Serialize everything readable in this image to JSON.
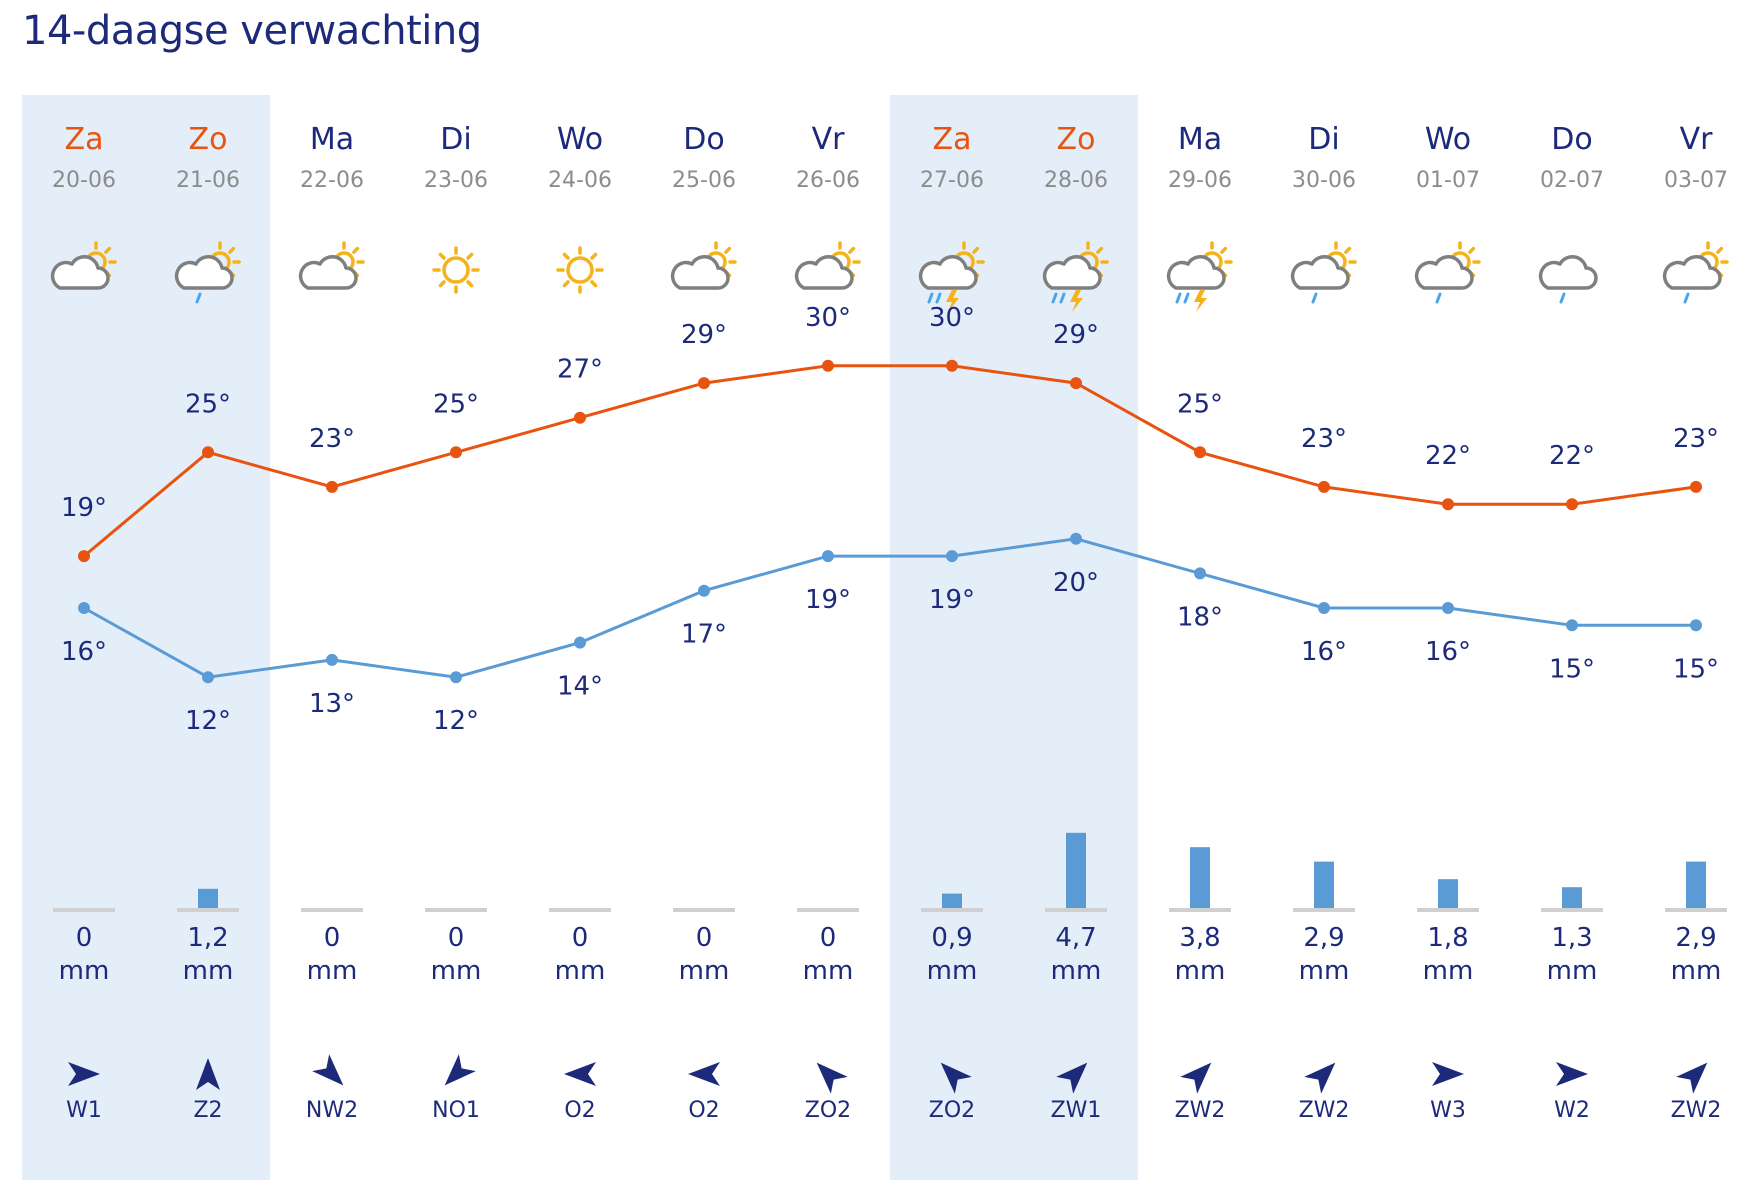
{
  "title": "14-daagse verwachting",
  "colors": {
    "text": "#1d2a7a",
    "weekend_text": "#e8540f",
    "date_text": "#8c8c8c",
    "max_line": "#e8540f",
    "min_line": "#5b9bd5",
    "precip_bar": "#5b9bd5",
    "precip_base": "#d0d0d0",
    "weekend_band": "#e4eef9"
  },
  "units": {
    "temp": "°",
    "precip": "mm"
  },
  "chart_data": {
    "type": "line",
    "categories": [
      "Za 20-06",
      "Zo 21-06",
      "Ma 22-06",
      "Di 23-06",
      "Wo 24-06",
      "Do 25-06",
      "Vr 26-06",
      "Za 27-06",
      "Zo 28-06",
      "Ma 29-06",
      "Di 30-06",
      "Wo 01-07",
      "Do 02-07",
      "Vr 03-07"
    ],
    "series": [
      {
        "key": "max",
        "values": [
          19,
          25,
          23,
          25,
          27,
          29,
          30,
          30,
          29,
          25,
          23,
          22,
          22,
          23
        ]
      },
      {
        "key": "min",
        "values": [
          16,
          12,
          13,
          12,
          14,
          17,
          19,
          19,
          20,
          18,
          16,
          16,
          15,
          15
        ]
      },
      {
        "key": "precip",
        "type": "bar",
        "values": [
          0,
          1.2,
          0,
          0,
          0,
          0,
          0,
          0.9,
          4.7,
          3.8,
          2.9,
          1.8,
          1.3,
          2.9
        ]
      }
    ]
  },
  "days": [
    {
      "day": "Za",
      "date": "20-06",
      "weekend": true,
      "icon": "sun-cloud-icon",
      "precip_label": "0",
      "wind": "W1",
      "wind_dir_deg": 270
    },
    {
      "day": "Zo",
      "date": "21-06",
      "weekend": true,
      "icon": "sun-cloud-rain-icon",
      "precip_label": "1,2",
      "wind": "Z2",
      "wind_dir_deg": 180
    },
    {
      "day": "Ma",
      "date": "22-06",
      "weekend": false,
      "icon": "sun-cloud-icon",
      "precip_label": "0",
      "wind": "NW2",
      "wind_dir_deg": 315
    },
    {
      "day": "Di",
      "date": "23-06",
      "weekend": false,
      "icon": "sun-icon",
      "precip_label": "0",
      "wind": "NO1",
      "wind_dir_deg": 45
    },
    {
      "day": "Wo",
      "date": "24-06",
      "weekend": false,
      "icon": "sun-icon",
      "precip_label": "0",
      "wind": "O2",
      "wind_dir_deg": 90
    },
    {
      "day": "Do",
      "date": "25-06",
      "weekend": false,
      "icon": "sun-cloud-icon",
      "precip_label": "0",
      "wind": "O2",
      "wind_dir_deg": 90
    },
    {
      "day": "Vr",
      "date": "26-06",
      "weekend": false,
      "icon": "sun-cloud-icon",
      "precip_label": "0",
      "wind": "ZO2",
      "wind_dir_deg": 135
    },
    {
      "day": "Za",
      "date": "27-06",
      "weekend": true,
      "icon": "sun-cloud-thunder-icon",
      "precip_label": "0,9",
      "wind": "ZO2",
      "wind_dir_deg": 135
    },
    {
      "day": "Zo",
      "date": "28-06",
      "weekend": true,
      "icon": "sun-cloud-thunder-icon",
      "precip_label": "4,7",
      "wind": "ZW1",
      "wind_dir_deg": 225
    },
    {
      "day": "Ma",
      "date": "29-06",
      "weekend": false,
      "icon": "sun-cloud-thunder-icon",
      "precip_label": "3,8",
      "wind": "ZW2",
      "wind_dir_deg": 225
    },
    {
      "day": "Di",
      "date": "30-06",
      "weekend": false,
      "icon": "sun-cloud-rain-icon",
      "precip_label": "2,9",
      "wind": "ZW2",
      "wind_dir_deg": 225
    },
    {
      "day": "Wo",
      "date": "01-07",
      "weekend": false,
      "icon": "sun-cloud-rain-icon",
      "precip_label": "1,8",
      "wind": "W3",
      "wind_dir_deg": 270
    },
    {
      "day": "Do",
      "date": "02-07",
      "weekend": false,
      "icon": "cloud-rain-icon",
      "precip_label": "1,3",
      "wind": "W2",
      "wind_dir_deg": 270
    },
    {
      "day": "Vr",
      "date": "03-07",
      "weekend": false,
      "icon": "sun-cloud-rain-icon",
      "precip_label": "2,9",
      "wind": "ZW2",
      "wind_dir_deg": 225
    }
  ]
}
